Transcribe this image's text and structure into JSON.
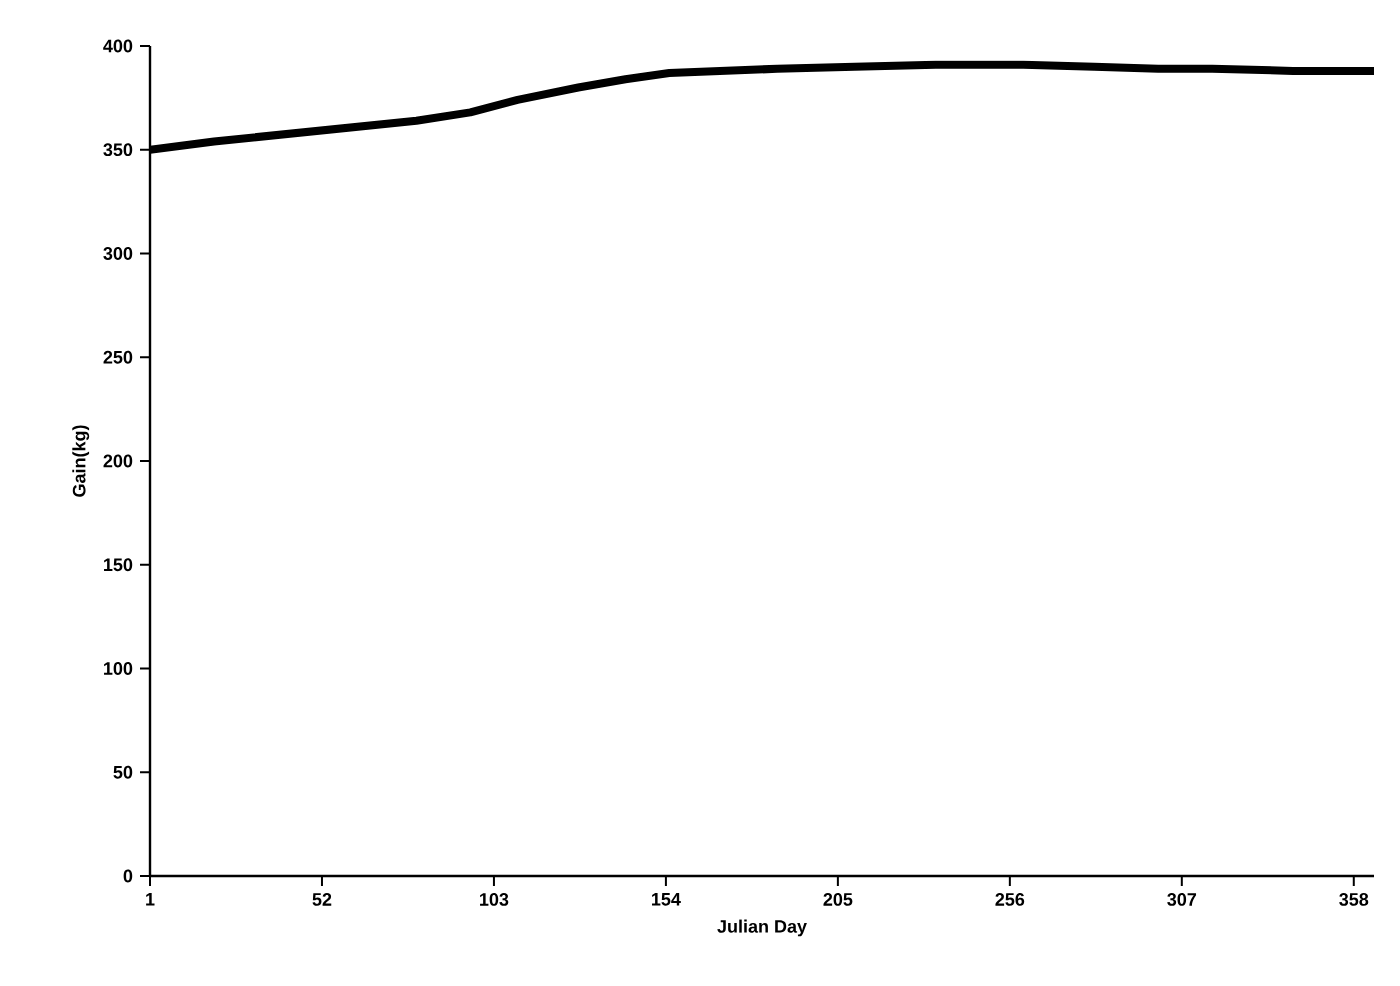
{
  "chart_data": {
    "type": "line",
    "xlabel": "Julian Day",
    "ylabel": "Gain(kg)",
    "x": [
      1,
      20,
      50,
      80,
      96,
      110,
      128,
      142,
      155,
      170,
      187,
      210,
      234,
      260,
      281,
      300,
      316,
      340,
      364
    ],
    "series": [
      {
        "color": "#000000",
        "values": [
          350,
          354,
          359,
          364,
          368,
          374,
          380,
          384,
          387,
          388,
          389,
          390,
          391,
          391,
          390,
          389,
          389,
          388,
          388
        ]
      }
    ],
    "xlim": [
      1,
      364
    ],
    "xticks": [
      1,
      52,
      103,
      154,
      205,
      256,
      307,
      358
    ],
    "ylim": [
      0,
      400
    ],
    "yticks": [
      0,
      50,
      100,
      150,
      200,
      250,
      300,
      350,
      400
    ],
    "marker": "none",
    "line_style": "solid"
  }
}
